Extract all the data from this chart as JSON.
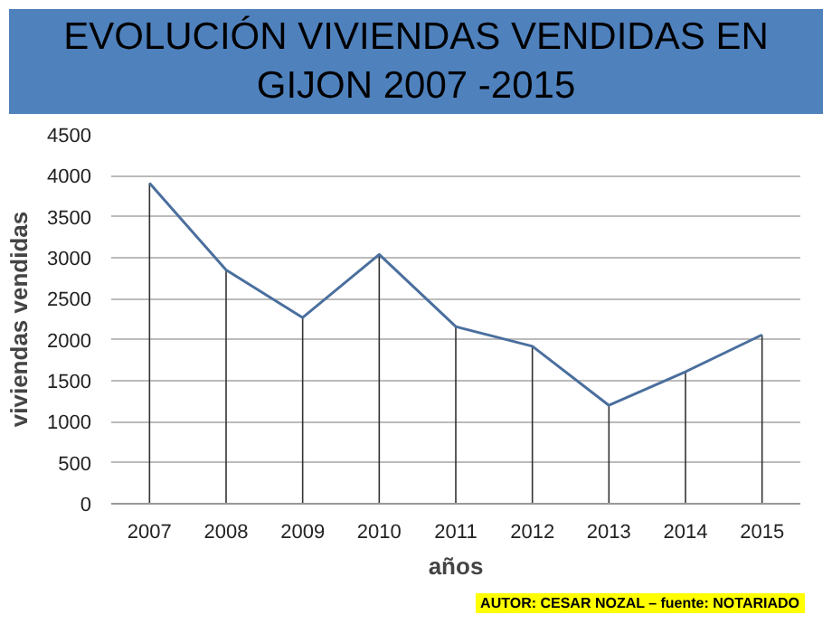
{
  "chart_data": {
    "type": "line",
    "title": "EVOLUCIÓN VIVIENDAS VENDIDAS EN GIJON  2007 -2015",
    "xlabel": "años",
    "ylabel": "viviendas vendidas",
    "categories": [
      "2007",
      "2008",
      "2009",
      "2010",
      "2011",
      "2012",
      "2013",
      "2014",
      "2015"
    ],
    "series": [
      {
        "color": "#4a6f9e",
        "values": [
          3910,
          2850,
          2270,
          3040,
          2160,
          1920,
          1200,
          1610,
          2060
        ],
        "errors": [
          [
            0,
            3910
          ],
          [
            0,
            2850
          ],
          [
            0,
            2270
          ],
          [
            0,
            3040
          ],
          [
            0,
            2160
          ],
          [
            0,
            1920
          ],
          [
            0,
            1200
          ],
          [
            0,
            1610
          ],
          [
            0,
            2060
          ]
        ]
      }
    ],
    "ylim": [
      0,
      4500
    ],
    "yticks": [
      0,
      500,
      1000,
      1500,
      2000,
      2500,
      3000,
      3500,
      4000,
      4500
    ],
    "grid": "y",
    "marker": "none",
    "annotations": [
      "AUTOR: CESAR NOZAL – fuente: NOTARIADO"
    ]
  }
}
